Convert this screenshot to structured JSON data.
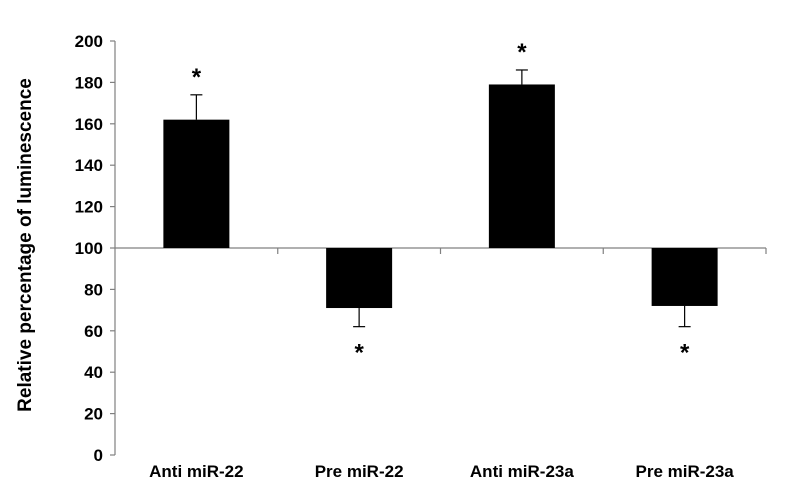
{
  "chart_data": {
    "type": "bar",
    "title": "",
    "xlabel": "",
    "ylabel": "Relative percentage of luminescence",
    "categories": [
      "Anti miR-22",
      "Pre miR-22",
      "Anti miR-23a",
      "Pre miR-23a"
    ],
    "values": [
      162,
      71,
      179,
      72
    ],
    "error_bars": [
      12,
      9,
      7,
      10
    ],
    "baseline": 100,
    "significance": [
      "*",
      "*",
      "*",
      "*"
    ],
    "ylim": [
      0,
      200
    ],
    "yticks": [
      0,
      20,
      40,
      60,
      80,
      100,
      120,
      140,
      160,
      180,
      200
    ],
    "grid": false,
    "legend": "none",
    "bar_color": "#000000"
  }
}
